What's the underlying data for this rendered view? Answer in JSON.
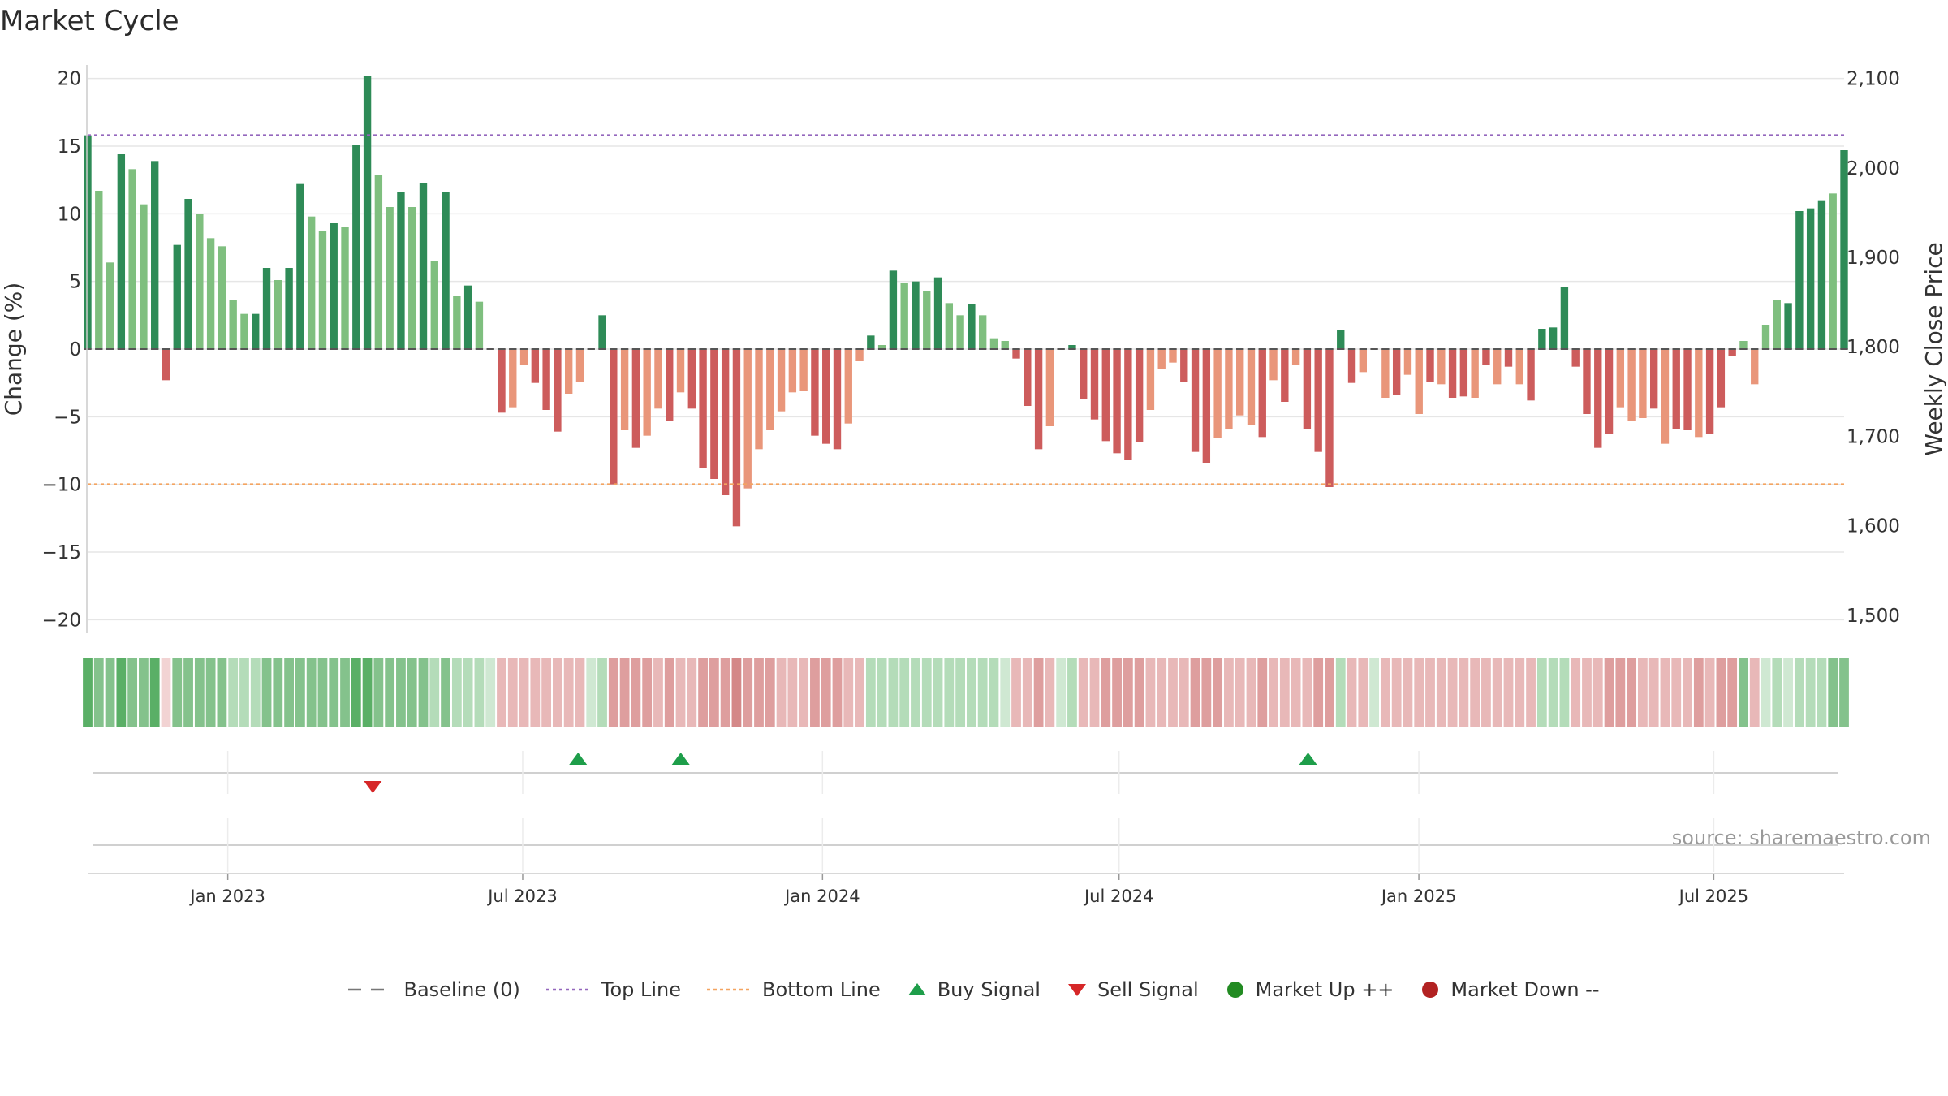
{
  "title": "Market Cycle",
  "source": "source: sharemaestro.com",
  "colors": {
    "up_strong": "#2e8b57",
    "up_light": "#7fbf7f",
    "down_strong": "#cd5c5c",
    "down_light": "#e9967a",
    "top_line": "#9467bd",
    "bottom_line": "#f4a460",
    "buy": "#1e9e4a",
    "sell": "#d62728",
    "market_up": "#228b22",
    "market_down": "#b22222"
  },
  "legend": [
    {
      "label": "Baseline (0)",
      "icon": "dash-line-icon",
      "color": "#777777"
    },
    {
      "label": "Top Line",
      "icon": "dotted-line-icon",
      "color": "#9467bd"
    },
    {
      "label": "Bottom Line",
      "icon": "dotted-line-icon",
      "color": "#f4a460"
    },
    {
      "label": "Buy Signal",
      "icon": "triangle-up-icon",
      "color": "#1e9e4a"
    },
    {
      "label": "Sell Signal",
      "icon": "triangle-down-icon",
      "color": "#d62728"
    },
    {
      "label": "Market Up ++",
      "icon": "circle-icon",
      "color": "#228b22"
    },
    {
      "label": "Market Down --",
      "icon": "circle-icon",
      "color": "#b22222"
    }
  ],
  "chart_data": {
    "type": "bar",
    "ylabel": "Change (%)",
    "ylabel_right": "Weekly Close Price",
    "ylim": [
      -21,
      21
    ],
    "yticks": [
      -20,
      -15,
      -10,
      -5,
      0,
      5,
      10,
      15,
      20
    ],
    "ytick_labels": [
      "−20",
      "−15",
      "−10",
      "−5",
      "0",
      "5",
      "10",
      "15",
      "20"
    ],
    "ylim_right": [
      1480,
      2115
    ],
    "yticks_right": [
      1500,
      1600,
      1700,
      1800,
      1900,
      2000,
      2100
    ],
    "ytick_labels_right": [
      "1,500",
      "1,600",
      "1,700",
      "1,800",
      "1,900",
      "2,000",
      "2,100"
    ],
    "top_line": 15.8,
    "bottom_line": -10,
    "grid": true,
    "legend_position": "bottom-center",
    "x_start": "2022-10-07",
    "x_end": "2025-09-19",
    "x_interval_days": 7,
    "xticks": [
      "2023-01-01",
      "2023-07-01",
      "2024-01-01",
      "2024-07-01",
      "2025-01-01",
      "2025-07-01"
    ],
    "xtick_labels": [
      "Jan 2023",
      "Jul 2023",
      "Jan 2024",
      "Jul 2024",
      "Jan 2025",
      "Jul 2025"
    ],
    "series": [
      {
        "values": [
          15.8,
          11.7,
          6.4,
          14.4,
          13.3,
          10.7,
          13.9,
          -2.3,
          7.7,
          11.1,
          10.0,
          8.2,
          7.6,
          3.6,
          2.6,
          2.6,
          6.0,
          5.1,
          6.0,
          12.2,
          9.8,
          8.7,
          9.3,
          9.0,
          15.1,
          20.2,
          12.9,
          10.5,
          11.6,
          10.5,
          12.3,
          6.5,
          11.6,
          3.9,
          4.7,
          3.5,
          0,
          -4.7,
          -4.3,
          -1.2,
          -2.5,
          -4.5,
          -6.1,
          -3.3,
          -2.4,
          0,
          2.5,
          -10.0,
          -6.0,
          -7.3,
          -6.4,
          -4.4,
          -5.3,
          -3.2,
          -4.4,
          -8.8,
          -9.6,
          -10.8,
          -13.1,
          -10.3,
          -7.4,
          -6.0,
          -4.6,
          -3.2,
          -3.1,
          -6.4,
          -7.0,
          -7.4,
          -5.5,
          -0.9,
          1.0,
          0.3,
          5.8,
          4.9,
          5.0,
          4.3,
          5.3,
          3.4,
          2.5,
          3.3,
          2.5,
          0.8,
          0.6,
          -0.7,
          -4.2,
          -7.4,
          -5.7,
          0,
          0.3,
          -3.7,
          -5.2,
          -6.8,
          -7.7,
          -8.2,
          -6.9,
          -4.5,
          -1.5,
          -1.0,
          -2.4,
          -7.6,
          -8.4,
          -6.6,
          -5.9,
          -4.9,
          -5.6,
          -6.5,
          -2.3,
          -3.9,
          -1.2,
          -5.9,
          -7.6,
          -10.2,
          1.4,
          -2.5,
          -1.7,
          0,
          -3.6,
          -3.4,
          -1.9,
          -4.8,
          -2.4,
          -2.6,
          -3.6,
          -3.5,
          -3.6,
          -1.2,
          -2.6,
          -1.3,
          -2.6,
          -3.8,
          1.5,
          1.6,
          4.6,
          -1.3,
          -4.8,
          -7.3,
          -6.3,
          -4.3,
          -5.3,
          -5.1,
          -4.4,
          -7.0,
          -5.9,
          -6.0,
          -6.5,
          -6.3,
          -4.3,
          -0.5,
          0.6,
          -2.6,
          1.8,
          3.6,
          3.4,
          10.2,
          10.4,
          11.0,
          11.5,
          14.7
        ]
      }
    ],
    "bar_shade": [
      1,
      0,
      0,
      1,
      0,
      0,
      1,
      1,
      1,
      1,
      0,
      0,
      0,
      0,
      0,
      1,
      1,
      0,
      1,
      1,
      0,
      0,
      1,
      0,
      1,
      1,
      0,
      0,
      1,
      0,
      1,
      0,
      1,
      0,
      1,
      0,
      0,
      1,
      0,
      0,
      1,
      1,
      1,
      0,
      0,
      0,
      1,
      1,
      0,
      1,
      0,
      0,
      1,
      0,
      1,
      1,
      1,
      1,
      1,
      0,
      0,
      0,
      0,
      0,
      0,
      1,
      1,
      1,
      0,
      0,
      1,
      0,
      1,
      0,
      1,
      0,
      1,
      0,
      0,
      1,
      0,
      0,
      0,
      1,
      1,
      1,
      0,
      0,
      1,
      1,
      1,
      1,
      1,
      1,
      1,
      0,
      0,
      0,
      1,
      1,
      1,
      0,
      0,
      0,
      0,
      1,
      0,
      1,
      0,
      1,
      1,
      1,
      1,
      1,
      0,
      0,
      0,
      1,
      0,
      0,
      1,
      0,
      1,
      1,
      0,
      1,
      0,
      1,
      0,
      1,
      1,
      1,
      1,
      1,
      1,
      1,
      1,
      0,
      0,
      0,
      1,
      0,
      1,
      1,
      0,
      1,
      1,
      1,
      0,
      0,
      0,
      0,
      1,
      1,
      1,
      1,
      0,
      1,
      1,
      1,
      1
    ],
    "strip_levels": [
      3,
      2,
      2,
      3,
      2,
      2,
      3,
      0,
      2,
      2,
      2,
      2,
      2,
      1,
      1,
      1,
      2,
      2,
      2,
      2,
      2,
      2,
      2,
      2,
      3,
      3,
      2,
      2,
      2,
      2,
      2,
      1,
      2,
      1,
      1,
      1,
      0,
      1,
      1,
      1,
      1,
      1,
      1,
      1,
      1,
      0,
      1,
      2,
      2,
      2,
      2,
      1,
      2,
      1,
      1,
      2,
      2,
      2,
      3,
      2,
      2,
      2,
      1,
      1,
      1,
      2,
      2,
      2,
      1,
      1,
      1,
      1,
      1,
      1,
      1,
      1,
      1,
      1,
      1,
      1,
      1,
      1,
      0,
      1,
      1,
      2,
      1,
      0,
      1,
      1,
      1,
      2,
      2,
      2,
      2,
      1,
      1,
      1,
      1,
      2,
      2,
      2,
      1,
      1,
      1,
      2,
      1,
      1,
      1,
      1,
      2,
      2,
      1,
      1,
      1,
      0,
      1,
      1,
      1,
      1,
      1,
      1,
      1,
      1,
      1,
      1,
      1,
      1,
      1,
      1,
      1,
      1,
      1,
      1,
      1,
      1,
      2,
      2,
      2,
      1,
      1,
      1,
      1,
      1,
      2,
      1,
      2,
      2,
      2,
      1,
      0,
      1,
      0,
      1,
      1,
      1,
      2,
      2,
      2,
      2,
      2
    ],
    "buy_signals": [
      "2023-08-04",
      "2023-10-06",
      "2024-10-25"
    ],
    "sell_signals": [
      "2023-03-31"
    ]
  }
}
